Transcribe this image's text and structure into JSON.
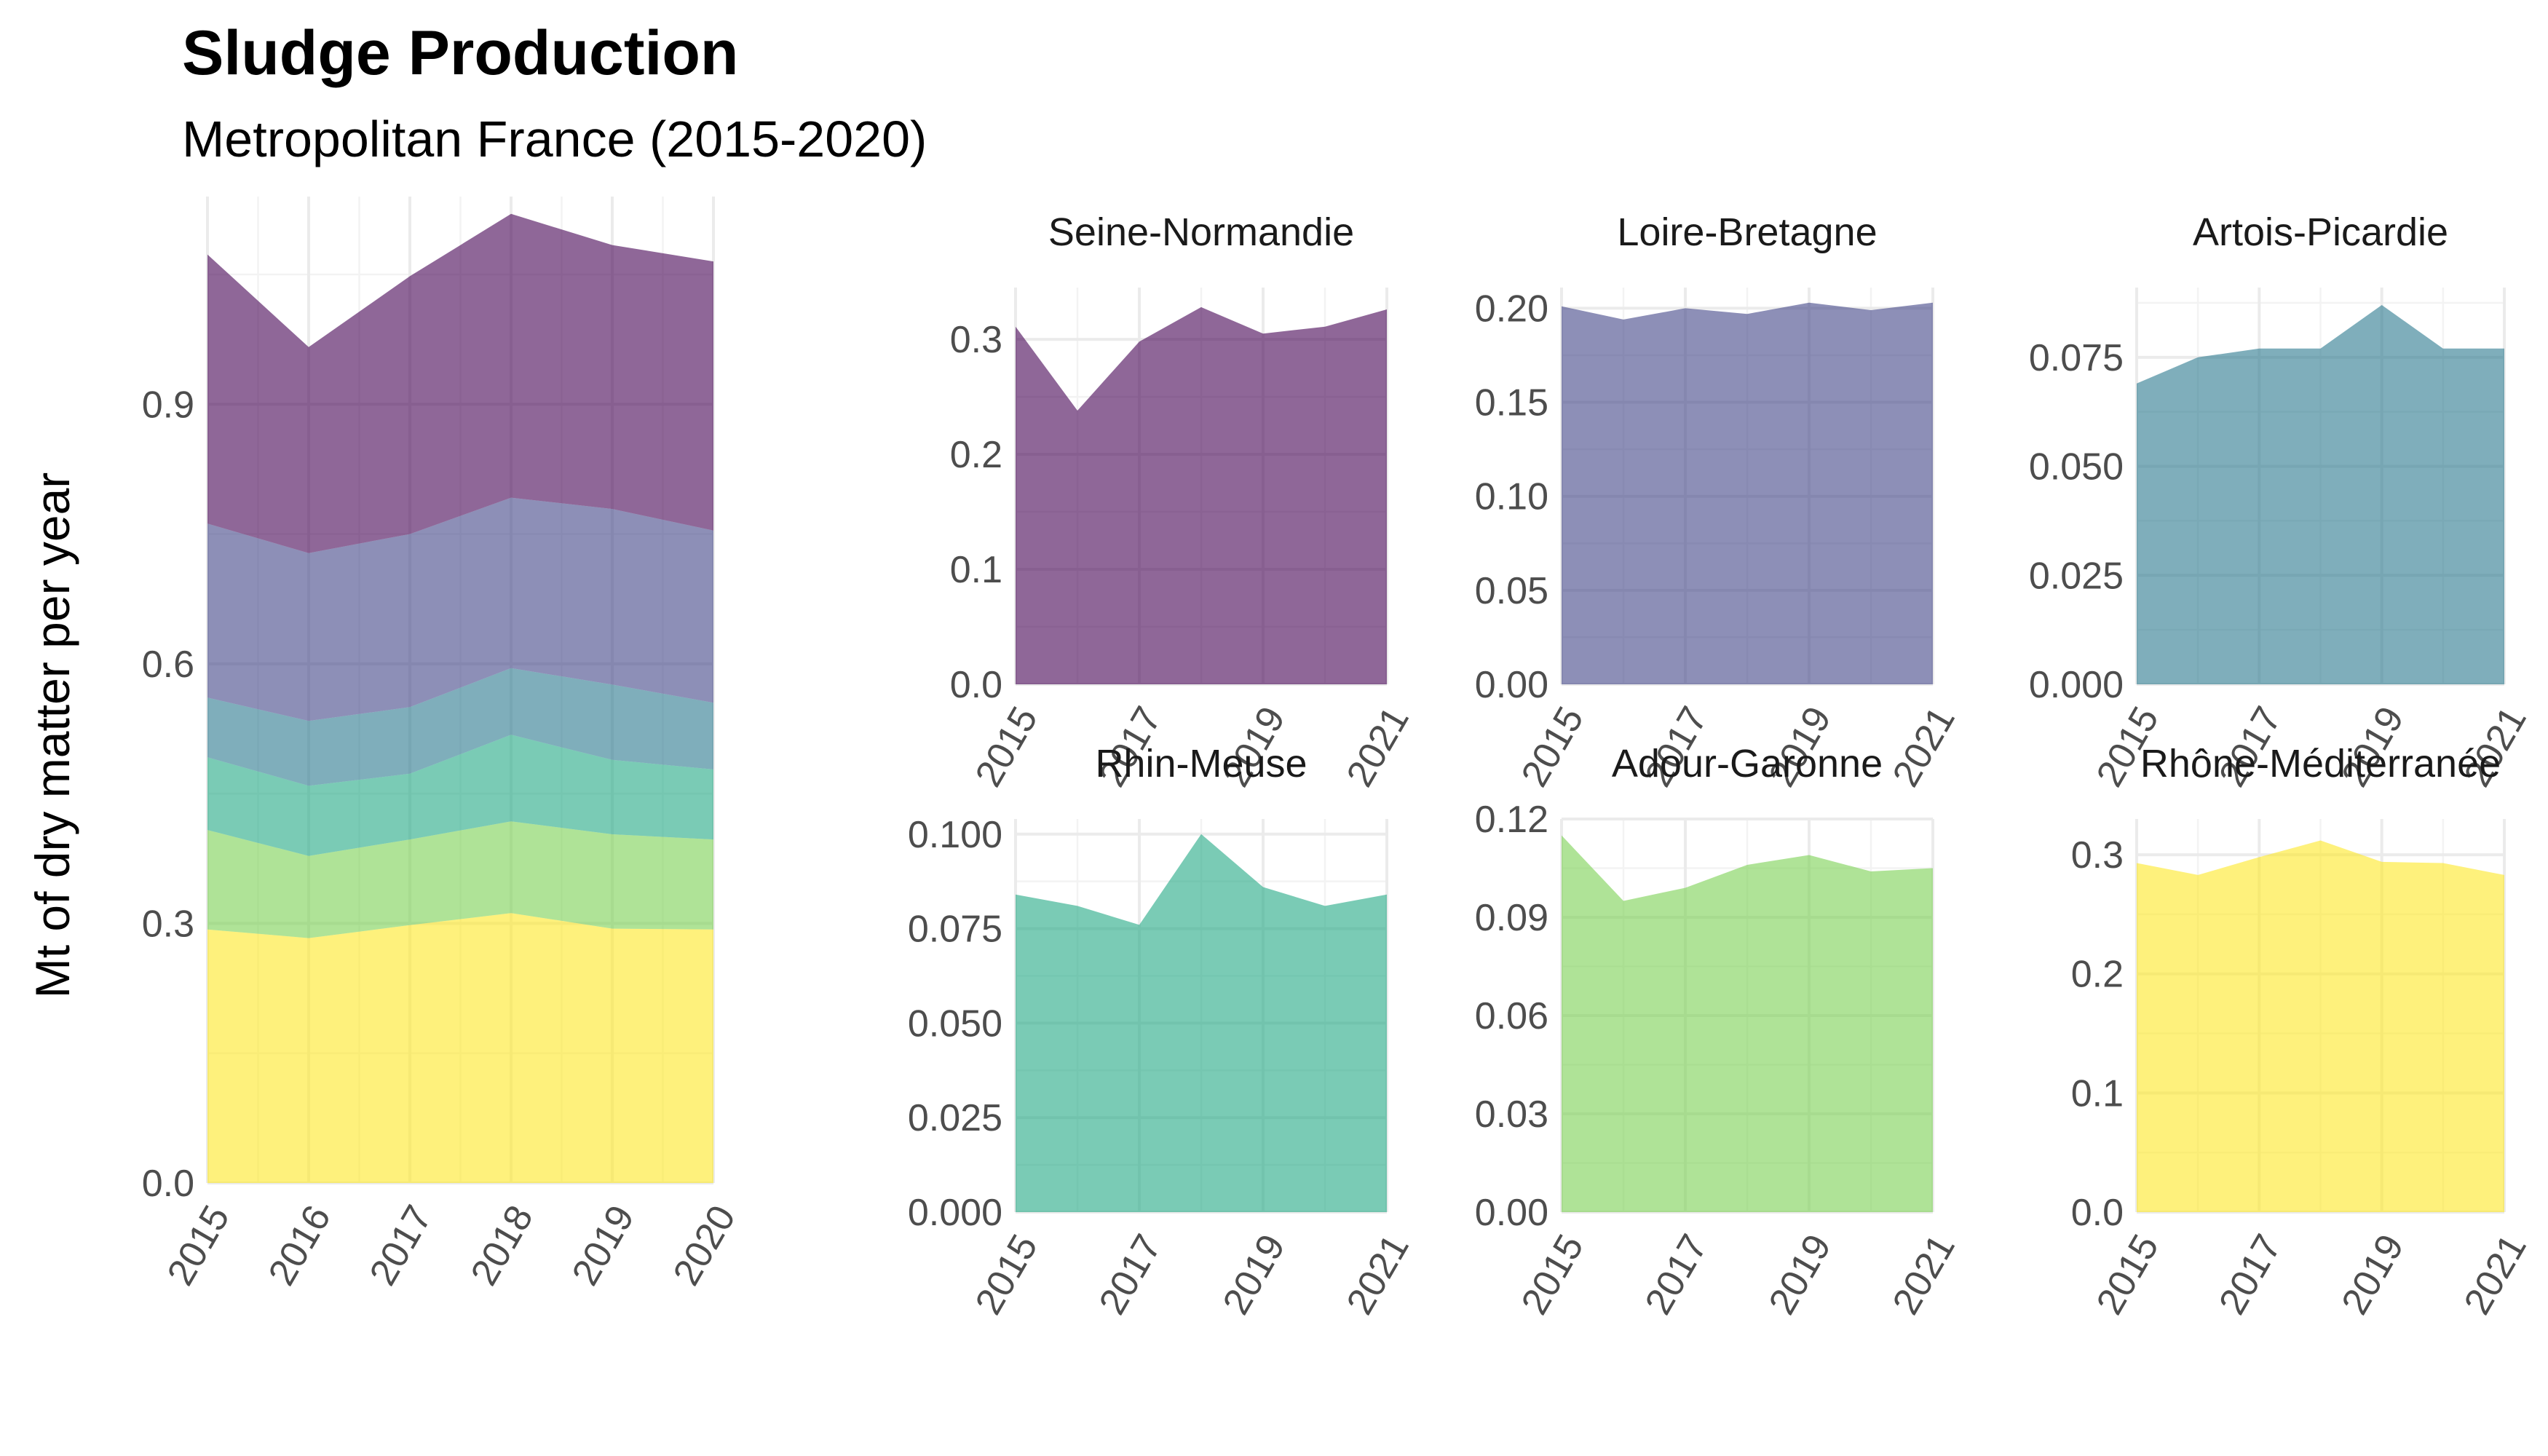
{
  "title": "Sludge Production",
  "subtitle": "Metropolitan France (2015-2020)",
  "ylabel": "Mt of dry matter per year",
  "colors": {
    "Seine-Normandie": "#440154",
    "Loire-Bretagne": "#414487",
    "Artois-Picardie": "#2a788e",
    "Rhin-Meuse": "#22a884",
    "Adour-Garonne": "#7ad151",
    "Rhône-Méditerranée": "#fde725"
  },
  "chart_data": [
    {
      "type": "area",
      "stacked": true,
      "x": [
        2015,
        2016,
        2017,
        2018,
        2019,
        2020
      ],
      "xticks": [
        "2015",
        "2016",
        "2017",
        "2018",
        "2019",
        "2020"
      ],
      "ylim": [
        0,
        1.14
      ],
      "yticks": [
        0.0,
        0.3,
        0.6,
        0.9
      ],
      "ytick_labels": [
        "0.0",
        "0.3",
        "0.6",
        "0.9"
      ],
      "grid": true,
      "legend": "none",
      "series": [
        {
          "region": "Rhône-Méditerranée",
          "values": [
            0.293,
            0.283,
            0.298,
            0.312,
            0.294,
            0.293
          ]
        },
        {
          "region": "Adour-Garonne",
          "values": [
            0.115,
            0.095,
            0.099,
            0.106,
            0.109,
            0.104
          ]
        },
        {
          "region": "Rhin-Meuse",
          "values": [
            0.084,
            0.081,
            0.076,
            0.1,
            0.086,
            0.081
          ]
        },
        {
          "region": "Artois-Picardie",
          "values": [
            0.069,
            0.075,
            0.077,
            0.077,
            0.087,
            0.077
          ]
        },
        {
          "region": "Loire-Bretagne",
          "values": [
            0.201,
            0.194,
            0.2,
            0.197,
            0.203,
            0.199
          ]
        },
        {
          "region": "Seine-Normandie",
          "values": [
            0.311,
            0.238,
            0.298,
            0.328,
            0.305,
            0.311
          ]
        }
      ]
    },
    {
      "type": "area",
      "title": "Seine-Normandie",
      "x": [
        2015,
        2016,
        2017,
        2018,
        2019,
        2020,
        2021
      ],
      "values": [
        0.311,
        0.238,
        0.298,
        0.328,
        0.305,
        0.311,
        0.326
      ],
      "ylim": [
        0,
        0.345
      ],
      "yticks": [
        0.0,
        0.1,
        0.2,
        0.3
      ],
      "ytick_labels": [
        "0.0",
        "0.1",
        "0.2",
        "0.3"
      ],
      "xticks": [
        2015,
        2017,
        2019,
        2021
      ],
      "xtick_labels": [
        "2015",
        "2017",
        "2019",
        "2021"
      ]
    },
    {
      "type": "area",
      "title": "Loire-Bretagne",
      "x": [
        2015,
        2016,
        2017,
        2018,
        2019,
        2020,
        2021
      ],
      "values": [
        0.201,
        0.194,
        0.2,
        0.197,
        0.203,
        0.199,
        0.203
      ],
      "ylim": [
        0,
        0.211
      ],
      "yticks": [
        0.0,
        0.05,
        0.1,
        0.15,
        0.2
      ],
      "ytick_labels": [
        "0.00",
        "0.05",
        "0.10",
        "0.15",
        "0.20"
      ],
      "xticks": [
        2015,
        2017,
        2019,
        2021
      ],
      "xtick_labels": [
        "2015",
        "2017",
        "2019",
        "2021"
      ]
    },
    {
      "type": "area",
      "title": "Artois-Picardie",
      "x": [
        2015,
        2016,
        2017,
        2018,
        2019,
        2020,
        2021
      ],
      "values": [
        0.069,
        0.075,
        0.077,
        0.077,
        0.087,
        0.077,
        0.077
      ],
      "ylim": [
        0,
        0.091
      ],
      "yticks": [
        0.0,
        0.025,
        0.05,
        0.075
      ],
      "ytick_labels": [
        "0.000",
        "0.025",
        "0.050",
        "0.075"
      ],
      "xticks": [
        2015,
        2017,
        2019,
        2021
      ],
      "xtick_labels": [
        "2015",
        "2017",
        "2019",
        "2021"
      ]
    },
    {
      "type": "area",
      "title": "Rhin-Meuse",
      "x": [
        2015,
        2016,
        2017,
        2018,
        2019,
        2020,
        2021
      ],
      "values": [
        0.084,
        0.081,
        0.076,
        0.1,
        0.086,
        0.081,
        0.084
      ],
      "ylim": [
        0,
        0.104
      ],
      "yticks": [
        0.0,
        0.025,
        0.05,
        0.075,
        0.1
      ],
      "ytick_labels": [
        "0.000",
        "0.025",
        "0.050",
        "0.075",
        "0.100"
      ],
      "xticks": [
        2015,
        2017,
        2019,
        2021
      ],
      "xtick_labels": [
        "2015",
        "2017",
        "2019",
        "2021"
      ]
    },
    {
      "type": "area",
      "title": "Adour-Garonne",
      "x": [
        2015,
        2016,
        2017,
        2018,
        2019,
        2020,
        2021
      ],
      "values": [
        0.115,
        0.095,
        0.099,
        0.106,
        0.109,
        0.104,
        0.105
      ],
      "ylim": [
        0,
        0.12
      ],
      "yticks": [
        0.0,
        0.03,
        0.06,
        0.09,
        0.12
      ],
      "ytick_labels": [
        "0.00",
        "0.03",
        "0.06",
        "0.09",
        "0.12"
      ],
      "xticks": [
        2015,
        2017,
        2019,
        2021
      ],
      "xtick_labels": [
        "2015",
        "2017",
        "2019",
        "2021"
      ]
    },
    {
      "type": "area",
      "title": "Rhône-Méditerranée",
      "x": [
        2015,
        2016,
        2017,
        2018,
        2019,
        2020,
        2021
      ],
      "values": [
        0.293,
        0.283,
        0.298,
        0.312,
        0.294,
        0.293,
        0.283
      ],
      "ylim": [
        0,
        0.33
      ],
      "yticks": [
        0.0,
        0.1,
        0.2,
        0.3
      ],
      "ytick_labels": [
        "0.0",
        "0.1",
        "0.2",
        "0.3"
      ],
      "xticks": [
        2015,
        2017,
        2019,
        2021
      ],
      "xtick_labels": [
        "2015",
        "2017",
        "2019",
        "2021"
      ]
    }
  ]
}
